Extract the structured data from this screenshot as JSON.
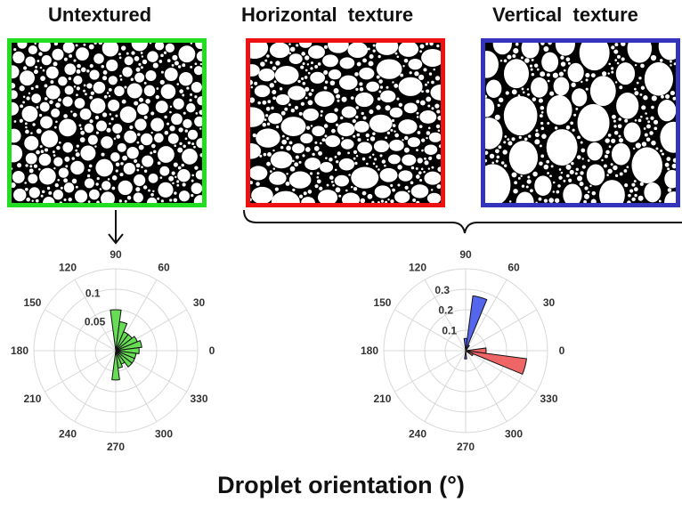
{
  "panels": [
    {
      "title": "Untextured",
      "border_color": "#22dd22",
      "droplet_scale": "small"
    },
    {
      "title": "Horizontal  texture",
      "border_color": "#ee1111",
      "droplet_scale": "medium"
    },
    {
      "title": "Vertical  texture",
      "border_color": "#3333bb",
      "droplet_scale": "large"
    }
  ],
  "caption": "Droplet orientation (°)",
  "chart_data": [
    {
      "type": "polar-bar",
      "angle_labels": [
        "90",
        "60",
        "30",
        "0",
        "330",
        "300",
        "270",
        "240",
        "210",
        "180",
        "150",
        "120"
      ],
      "radial_labels": [
        "0.05",
        "0.1"
      ],
      "rlim": [
        0,
        0.14
      ],
      "grid": true,
      "series": [
        {
          "color": "#66dd55",
          "bins": [
            {
              "angle": 90,
              "value": 0.07
            },
            {
              "angle": 75,
              "value": 0.05
            },
            {
              "angle": 60,
              "value": 0.035
            },
            {
              "angle": 45,
              "value": 0.035
            },
            {
              "angle": 30,
              "value": 0.04
            },
            {
              "angle": 15,
              "value": 0.045
            },
            {
              "angle": 0,
              "value": 0.04
            },
            {
              "angle": 345,
              "value": 0.035
            },
            {
              "angle": 330,
              "value": 0.035
            },
            {
              "angle": 315,
              "value": 0.035
            },
            {
              "angle": 300,
              "value": 0.025
            },
            {
              "angle": 285,
              "value": 0.03
            },
            {
              "angle": 270,
              "value": 0.05
            }
          ]
        }
      ]
    },
    {
      "type": "polar-bar",
      "angle_labels": [
        "90",
        "60",
        "30",
        "0",
        "330",
        "300",
        "270",
        "240",
        "210",
        "180",
        "150",
        "120"
      ],
      "radial_labels": [
        "0.1",
        "0.2",
        "0.3"
      ],
      "rlim": [
        0,
        0.4
      ],
      "grid": true,
      "series": [
        {
          "color": "#5566ee",
          "bins": [
            {
              "angle": 90,
              "value": 0.06
            },
            {
              "angle": 75,
              "value": 0.27
            },
            {
              "angle": 60,
              "value": 0.03
            },
            {
              "angle": 270,
              "value": 0.04
            }
          ]
        },
        {
          "color": "#ee6666",
          "bins": [
            {
              "angle": 0,
              "value": 0.1
            },
            {
              "angle": 345,
              "value": 0.3
            },
            {
              "angle": 330,
              "value": 0.04
            }
          ]
        }
      ]
    }
  ]
}
